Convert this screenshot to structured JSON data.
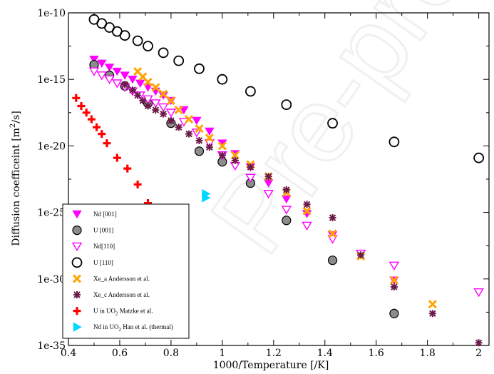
{
  "chart_data": {
    "type": "scatter",
    "xlabel": "1000/Temperature [/K]",
    "ylabel_main": "Diffusion coefficeint [m",
    "ylabel_sup": "2",
    "ylabel_end": "/s]",
    "xlim": [
      0.4,
      2.04
    ],
    "ylim_log10": [
      -35,
      -10
    ],
    "log_y": true,
    "grid": false,
    "legend_position": "bottom-left",
    "x_ticks": [
      0.4,
      0.6,
      0.8,
      1.0,
      1.2,
      1.4,
      1.6,
      1.8,
      2.0
    ],
    "x_tick_labels": [
      "0.4",
      "0.6",
      "0.8",
      "1",
      "1.2",
      "1.4",
      "1.6",
      "1.8",
      "2"
    ],
    "y_ticks_log10": [
      -10,
      -15,
      -20,
      -25,
      -30,
      -35
    ],
    "y_tick_labels": [
      "1e-10",
      "1e-15",
      "1e-20",
      "1e-25",
      "1e-30",
      "1e-35"
    ],
    "watermark": "Pre-proof",
    "series": [
      {
        "name": "Nd [001]",
        "marker": "triangle-down-filled",
        "color": "#ff00ff",
        "x": [
          0.5,
          0.53,
          0.56,
          0.59,
          0.62,
          0.65,
          0.68,
          0.71,
          0.74,
          0.77,
          0.8,
          0.85,
          0.9,
          0.95,
          1.0,
          1.05,
          1.11,
          1.18,
          1.25,
          1.33,
          1.43,
          1.54,
          1.67,
          2.0
        ],
        "y_log10": [
          -13.5,
          -13.8,
          -14.1,
          -14.4,
          -14.7,
          -15.0,
          -15.3,
          -15.6,
          -15.9,
          -16.2,
          -16.6,
          -17.3,
          -18.1,
          -18.9,
          -19.8,
          -20.6,
          -21.6,
          -22.8,
          -24.0,
          -25.1,
          -26.7,
          -28.1,
          -30.1,
          -31.0
        ],
        "y_display": [
          "3e-14",
          "1.6e-14",
          "8e-15",
          "4e-15",
          "2e-15",
          "1e-15",
          "5e-16",
          "2.5e-16",
          "1.3e-16",
          "6e-17",
          "2.5e-17",
          "5e-18",
          "8e-19",
          "1.3e-19",
          "1.6e-20",
          "2.5e-21",
          "2.5e-22",
          "1.6e-23",
          "1e-24",
          "8e-26",
          "2e-27",
          "8e-29",
          "8e-31",
          "1e-31"
        ]
      },
      {
        "name": "U [001]",
        "marker": "circle-filled",
        "color": "#8c8c8c",
        "x": [
          0.5,
          0.56,
          0.62,
          0.71,
          0.8,
          0.91,
          1.0,
          1.11,
          1.25,
          1.43,
          1.67
        ],
        "y_log10": [
          -13.9,
          -14.7,
          -15.5,
          -16.8,
          -18.3,
          -20.4,
          -21.2,
          -22.8,
          -25.6,
          -28.6,
          -32.6
        ],
        "y_display": [
          "1.3e-14",
          "2e-15",
          "3e-16",
          "1.6e-17",
          "5e-19",
          "4e-21",
          "6e-22",
          "1.6e-23",
          "2.5e-26",
          "2.5e-29",
          "2.5e-33"
        ]
      },
      {
        "name": "Nd[110]",
        "marker": "triangle-down-open",
        "color": "#ff00ff",
        "x": [
          0.5,
          0.53,
          0.56,
          0.59,
          0.62,
          0.65,
          0.68,
          0.71,
          0.74,
          0.77,
          0.8,
          0.85,
          0.9,
          0.95,
          1.0,
          1.05,
          1.11,
          1.18,
          1.25,
          1.33,
          1.43,
          1.54,
          1.67,
          2.0
        ],
        "y_log10": [
          -14.4,
          -14.7,
          -15.0,
          -15.3,
          -15.6,
          -15.9,
          -16.2,
          -16.5,
          -16.8,
          -17.1,
          -17.5,
          -18.2,
          -19.0,
          -19.8,
          -20.7,
          -21.5,
          -22.4,
          -23.6,
          -24.8,
          -26.0,
          -27.0,
          -28.1,
          -29.0,
          -31.0
        ],
        "y_display": [
          "4e-15",
          "2e-15",
          "1e-15",
          "5e-16",
          "2.5e-16",
          "1.3e-16",
          "6e-17",
          "3e-17",
          "1.6e-17",
          "8e-18",
          "3e-18",
          "6e-19",
          "1e-19",
          "1.6e-20",
          "2e-21",
          "3e-22",
          "4e-23",
          "2.5e-24",
          "1.6e-25",
          "1e-26",
          "1e-27",
          "8e-29",
          "1e-29",
          "1e-31"
        ]
      },
      {
        "name": "U [110]",
        "marker": "circle-open",
        "color": "#000000",
        "x": [
          0.5,
          0.53,
          0.56,
          0.59,
          0.62,
          0.67,
          0.71,
          0.77,
          0.83,
          0.91,
          1.0,
          1.11,
          1.25,
          1.43,
          1.67,
          2.0
        ],
        "y_log10": [
          -10.5,
          -10.8,
          -11.1,
          -11.4,
          -11.7,
          -12.1,
          -12.5,
          -13.0,
          -13.6,
          -14.2,
          -15.0,
          -15.9,
          -16.9,
          -18.3,
          -19.7,
          -20.9
        ],
        "y_display": [
          "3e-11",
          "1.6e-11",
          "8e-12",
          "4e-12",
          "2e-12",
          "8e-13",
          "3e-13",
          "1e-13",
          "2.5e-14",
          "6e-15",
          "1e-15",
          "1.3e-16",
          "1.3e-17",
          "5e-19",
          "2e-20",
          "1.3e-21"
        ]
      },
      {
        "name": "Xe_a Andersson et al.",
        "marker": "x-cross",
        "color": "#ffa500",
        "x": [
          0.67,
          0.69,
          0.71,
          0.74,
          0.77,
          0.8,
          0.83,
          0.87,
          0.91,
          0.95,
          1.0,
          1.05,
          1.11,
          1.18,
          1.25,
          1.33,
          1.43,
          1.54,
          1.67,
          1.82
        ],
        "y_log10": [
          -14.4,
          -14.8,
          -15.2,
          -15.6,
          -16.1,
          -16.6,
          -17.3,
          -18.0,
          -18.7,
          -19.4,
          -20.0,
          -20.7,
          -21.4,
          -22.3,
          -23.5,
          -24.9,
          -26.6,
          -28.3,
          -30.1,
          -31.9
        ],
        "y_display": [
          "4e-15",
          "1.6e-15",
          "6e-16",
          "2.5e-16",
          "8e-17",
          "2.5e-17",
          "5e-18",
          "1e-18",
          "2e-19",
          "4e-20",
          "1e-20",
          "2e-21",
          "4e-22",
          "5e-23",
          "3e-24",
          "1.3e-25",
          "2.5e-27",
          "5e-29",
          "8e-31",
          "1.3e-32"
        ]
      },
      {
        "name": "Xe_c Andersson et al.",
        "marker": "asterisk",
        "color": "#6b1a4a",
        "x": [
          0.62,
          0.65,
          0.67,
          0.69,
          0.71,
          0.74,
          0.77,
          0.8,
          0.83,
          0.87,
          0.91,
          0.95,
          1.0,
          1.05,
          1.11,
          1.18,
          1.25,
          1.33,
          1.43,
          1.54,
          1.67,
          1.82,
          2.0
        ],
        "y_log10": [
          -15.4,
          -15.8,
          -16.2,
          -16.6,
          -17.0,
          -17.3,
          -17.6,
          -18.1,
          -18.6,
          -19.1,
          -19.6,
          -20.1,
          -20.7,
          -21.1,
          -21.6,
          -22.3,
          -23.3,
          -24.4,
          -25.4,
          -28.2,
          -30.6,
          -32.6,
          -34.8
        ],
        "y_display": [
          "4e-16",
          "1.6e-16",
          "6e-17",
          "2.5e-17",
          "1e-17",
          "5e-18",
          "2.5e-18",
          "8e-19",
          "2.5e-19",
          "8e-20",
          "2.5e-20",
          "8e-21",
          "2e-21",
          "8e-22",
          "2.5e-22",
          "5e-23",
          "5e-24",
          "4e-25",
          "4e-26",
          "6e-29",
          "2.5e-31",
          "2.5e-33",
          "1.6e-35"
        ]
      },
      {
        "name": "U in UO2 Matzke et al.",
        "legend_main": "U in UO",
        "legend_sub": "2",
        "legend_end": " Matzke et al.",
        "marker": "plus",
        "color": "#ff0000",
        "x": [
          0.43,
          0.45,
          0.47,
          0.49,
          0.51,
          0.53,
          0.55,
          0.59,
          0.63,
          0.67,
          0.71
        ],
        "y_log10": [
          -16.4,
          -17.0,
          -17.5,
          -18.0,
          -18.6,
          -19.1,
          -19.8,
          -20.9,
          -21.7,
          -22.9,
          -24.3
        ],
        "y_display": [
          "4e-17",
          "1e-17",
          "3e-18",
          "1e-18",
          "2.5e-19",
          "8e-20",
          "1.6e-20",
          "1.3e-21",
          "2e-22",
          "1.3e-23",
          "5e-25"
        ]
      },
      {
        "name": "Nd in UO2 Han et al. (thermal)",
        "legend_main": "Nd in UO",
        "legend_sub": "2",
        "legend_end": " Han et al. (thermal)",
        "marker": "triangle-right-filled",
        "color": "#00d8ff",
        "x": [
          0.935,
          0.935
        ],
        "y_log10": [
          -23.6,
          -23.9
        ],
        "y_display": [
          "2.5e-24",
          "1.3e-24"
        ]
      }
    ]
  }
}
